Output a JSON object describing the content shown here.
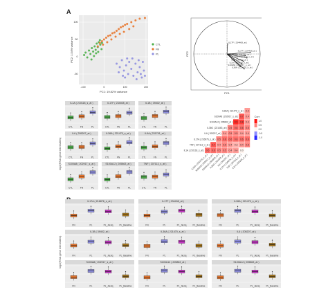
{
  "figure": {
    "panel_a_label": "A",
    "panel_b_label": "B"
  },
  "pca_scatter": {
    "xlabel": "PC1: 19.82% variance",
    "ylabel": "PC2: 1.54% variance",
    "legend": [
      "CTL",
      "FN",
      "PL"
    ],
    "colors": {
      "CTL": "#4daf4a",
      "FN": "#e8772e",
      "PL": "#8f8fe0"
    }
  },
  "chart_data": [
    {
      "type": "scatter",
      "xlabel": "PC1: 19.82% variance",
      "ylabel": "PC2: 1.54% variance",
      "xticks": [
        "-100",
        "0",
        "100",
        "200"
      ],
      "yticks": [
        "-50",
        "0",
        "50",
        "100"
      ],
      "xlim": [
        -120,
        210
      ],
      "ylim": [
        -80,
        120
      ],
      "series": [
        {
          "name": "CTL",
          "points": [
            [
              -95,
              5
            ],
            [
              -88,
              12
            ],
            [
              -80,
              -2
            ],
            [
              -72,
              18
            ],
            [
              -65,
              8
            ],
            [
              -58,
              25
            ],
            [
              -52,
              15
            ],
            [
              -45,
              30
            ],
            [
              -40,
              20
            ],
            [
              -35,
              38
            ],
            [
              -30,
              28
            ],
            [
              -25,
              42
            ],
            [
              -18,
              35
            ],
            [
              -12,
              22
            ],
            [
              -60,
              -8
            ],
            [
              -48,
              2
            ],
            [
              -38,
              10
            ],
            [
              -28,
              14
            ],
            [
              -20,
              48
            ],
            [
              -10,
              40
            ]
          ]
        },
        {
          "name": "FN",
          "points": [
            [
              -30,
              30
            ],
            [
              -20,
              40
            ],
            [
              -10,
              45
            ],
            [
              0,
              50
            ],
            [
              10,
              55
            ],
            [
              20,
              60
            ],
            [
              30,
              62
            ],
            [
              40,
              68
            ],
            [
              50,
              70
            ],
            [
              60,
              75
            ],
            [
              70,
              80
            ],
            [
              80,
              85
            ],
            [
              90,
              88
            ],
            [
              100,
              92
            ],
            [
              110,
              95
            ],
            [
              130,
              100
            ],
            [
              150,
              105
            ],
            [
              170,
              110
            ],
            [
              195,
              112
            ],
            [
              -5,
              35
            ],
            [
              15,
              42
            ],
            [
              35,
              50
            ],
            [
              55,
              58
            ],
            [
              75,
              66
            ],
            [
              95,
              72
            ],
            [
              120,
              80
            ],
            [
              140,
              88
            ]
          ]
        },
        {
          "name": "PL",
          "points": [
            [
              60,
              -20
            ],
            [
              75,
              -30
            ],
            [
              85,
              -10
            ],
            [
              95,
              -40
            ],
            [
              105,
              -25
            ],
            [
              115,
              -50
            ],
            [
              120,
              -15
            ],
            [
              130,
              -35
            ],
            [
              140,
              -55
            ],
            [
              150,
              -20
            ],
            [
              160,
              -45
            ],
            [
              170,
              -30
            ],
            [
              180,
              -60
            ],
            [
              190,
              -40
            ],
            [
              100,
              -60
            ],
            [
              110,
              -5
            ],
            [
              135,
              -5
            ],
            [
              155,
              -65
            ],
            [
              165,
              -10
            ],
            [
              175,
              -50
            ],
            [
              185,
              -15
            ],
            [
              195,
              -55
            ],
            [
              70,
              -45
            ],
            [
              90,
              -55
            ]
          ]
        }
      ]
    },
    {
      "type": "biplot",
      "xlabel": "PC1",
      "ylabel": "PC2",
      "xlim": [
        -1,
        1
      ],
      "ylim": [
        -1,
        1
      ],
      "vectors": [
        {
          "label": "IL17F ( 234408_at )",
          "x": 0.02,
          "y": 0.3
        },
        {
          "label": "IL17F ( 234408_at )",
          "x": 0.7,
          "y": 0.05
        },
        {
          "label": "IL9A ( 231791_at )",
          "x": 0.55,
          "y": -0.05
        },
        {
          "label": "TNF ( 207113_s_at )",
          "x": 0.6,
          "y": -0.12
        },
        {
          "label": "IL1B ( 39402_at )",
          "x": 0.5,
          "y": -0.22
        },
        {
          "label": "IL1A ( 210118_s_at )",
          "x": 0.45,
          "y": -0.3
        },
        {
          "label": "S100A8 ( 202917_s_at )",
          "x": 0.4,
          "y": -0.38
        },
        {
          "label": "IL36A ( 221470_s_at )",
          "x": 0.52,
          "y": -0.45
        }
      ]
    },
    {
      "type": "heatmap",
      "genes": [
        "IL36A ( 221470_s_at )",
        "S100A8 ( 202917_s_at )",
        "S100A12 ( 205863_at )",
        "IL36G ( 221463_at )",
        "IL6 ( 205207_at )",
        "IL17A ( 216876_s_at )",
        "TNF ( 207113_s_at )",
        "IL1A ( 210118_s_at )"
      ],
      "legend_title": "Corr",
      "legend_ticks": [
        "1.0",
        "0.5",
        "0.0",
        "-0.5",
        "-1.0"
      ],
      "cells": [
        {
          "r": 0,
          "c": 7,
          "v": 0.4
        },
        {
          "r": 1,
          "c": 6,
          "v": 0.7
        },
        {
          "r": 1,
          "c": 7,
          "v": 0.4
        },
        {
          "r": 2,
          "c": 5,
          "v": 0.9
        },
        {
          "r": 2,
          "c": 6,
          "v": 0.8
        },
        {
          "r": 2,
          "c": 7,
          "v": 0.4
        },
        {
          "r": 3,
          "c": 4,
          "v": 0.5
        },
        {
          "r": 3,
          "c": 5,
          "v": 0.6
        },
        {
          "r": 3,
          "c": 6,
          "v": 0.6
        },
        {
          "r": 3,
          "c": 7,
          "v": 0.5
        },
        {
          "r": 4,
          "c": 3,
          "v": 0.4
        },
        {
          "r": 4,
          "c": 4,
          "v": 0.5
        },
        {
          "r": 4,
          "c": 5,
          "v": 0.5
        },
        {
          "r": 4,
          "c": 6,
          "v": 0.4
        },
        {
          "r": 4,
          "c": 7,
          "v": 0.4
        },
        {
          "r": 5,
          "c": 2,
          "v": 0.5
        },
        {
          "r": 5,
          "c": 3,
          "v": 0.6
        },
        {
          "r": 5,
          "c": 4,
          "v": 0.6
        },
        {
          "r": 5,
          "c": 5,
          "v": 0.6
        },
        {
          "r": 5,
          "c": 6,
          "v": 0.6
        },
        {
          "r": 5,
          "c": 7,
          "v": 0.6
        },
        {
          "r": 6,
          "c": 1,
          "v": 0.7
        },
        {
          "r": 6,
          "c": 2,
          "v": 0.4
        },
        {
          "r": 6,
          "c": 3,
          "v": 0.5
        },
        {
          "r": 6,
          "c": 4,
          "v": 0.4
        },
        {
          "r": 6,
          "c": 5,
          "v": 0.3
        },
        {
          "r": 6,
          "c": 6,
          "v": 0.4
        },
        {
          "r": 6,
          "c": 7,
          "v": 0.5
        },
        {
          "r": 7,
          "c": 0,
          "v": 0.6
        },
        {
          "r": 7,
          "c": 1,
          "v": 0.6
        },
        {
          "r": 7,
          "c": 2,
          "v": 0.5
        },
        {
          "r": 7,
          "c": 3,
          "v": 0.5
        },
        {
          "r": 7,
          "c": 4,
          "v": 0.4
        },
        {
          "r": 7,
          "c": 5,
          "v": 0.4
        },
        {
          "r": 7,
          "c": 6,
          "v": 0.0
        }
      ]
    }
  ],
  "boxplots_a": {
    "ylabel": "log2(RNA gene intensities)",
    "groups": [
      "CTL",
      "FN",
      "PL"
    ],
    "colors": [
      "#4daf4a",
      "#e8772e",
      "#8f8fe0"
    ],
    "panels": [
      {
        "title": "IL1A ( 210118_s_at )",
        "med": [
          3.4,
          3.8,
          5.2
        ]
      },
      {
        "title": "IL17F ( 234408_at )",
        "med": [
          3.2,
          3.5,
          4.6
        ]
      },
      {
        "title": "IL1B ( 39402_at )",
        "med": [
          4.0,
          4.8,
          6.5
        ]
      },
      {
        "title": "IL6 ( 205207_at )",
        "med": [
          3.8,
          3.9,
          5.0
        ]
      },
      {
        "title": "IL36A ( 221470_s_at )",
        "med": [
          3.6,
          4.4,
          6.0
        ]
      },
      {
        "title": "IL9A ( 231791_at )",
        "med": [
          3.3,
          3.7,
          4.8
        ]
      },
      {
        "title": "S100A8 ( 202917_s_at )",
        "med": [
          7.0,
          8.2,
          10.0
        ]
      },
      {
        "title": "S100A12 ( 205863_at )",
        "med": [
          5.0,
          6.4,
          8.2
        ]
      },
      {
        "title": "TNF ( 207113_s_at )",
        "med": [
          3.5,
          3.6,
          4.2
        ]
      }
    ]
  },
  "boxplots_b": {
    "ylabel": "log2(RNA gene intensities)",
    "groups": [
      "FN",
      "PL",
      "PL_Jieziq",
      "PL_Baseline"
    ],
    "colors": [
      "#e8772e",
      "#8f8fe0",
      "#c837c8",
      "#a6761d"
    ],
    "panels": [
      {
        "title": "IL17A ( 216876_s_at )",
        "med": [
          3.0,
          4.6,
          4.4,
          3.3
        ]
      },
      {
        "title": "IL17F ( 234408_at )",
        "med": [
          3.2,
          4.5,
          4.8,
          3.4
        ]
      },
      {
        "title": "IL36A ( 221470_s_at )",
        "med": [
          3.6,
          5.0,
          4.8,
          3.5
        ]
      },
      {
        "title": "IL1B ( 39402_at )",
        "med": [
          4.0,
          5.2,
          5.0,
          4.1
        ]
      },
      {
        "title": "IL36A ( 221470_s_at )",
        "med": [
          3.9,
          5.5,
          5.3,
          4.0
        ]
      },
      {
        "title": "IL6 ( 205207_at )",
        "med": [
          3.5,
          4.8,
          4.6,
          3.8
        ]
      },
      {
        "title": "S100A8 ( 202917_s_at )",
        "med": [
          7.2,
          9.5,
          9.3,
          7.5
        ]
      },
      {
        "title": "S100A12 ( 205863_at )",
        "med": [
          5.2,
          7.8,
          7.5,
          5.6
        ]
      },
      {
        "title": "S100A12 ( 205863_at )",
        "med": [
          5.0,
          7.6,
          7.3,
          5.4
        ]
      }
    ]
  }
}
